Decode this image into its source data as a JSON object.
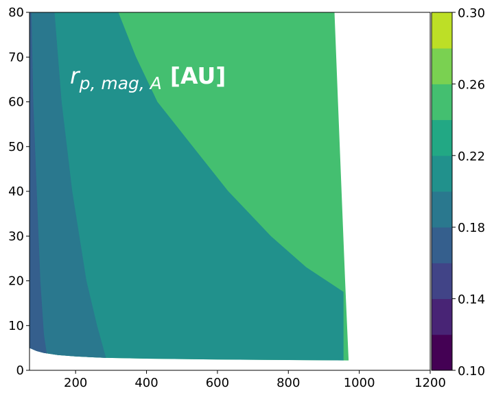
{
  "chart_data": {
    "type": "contourf",
    "title": "",
    "xlabel": "",
    "ylabel": "",
    "xlim": [
      70,
      1200
    ],
    "ylim": [
      0,
      80
    ],
    "x_ticks": [
      200,
      400,
      600,
      800,
      1000,
      1200
    ],
    "x_tick_labels": [
      "200",
      "400",
      "600",
      "800",
      "1000",
      "1200"
    ],
    "y_ticks": [
      0,
      10,
      20,
      30,
      40,
      50,
      60,
      70,
      80
    ],
    "y_tick_labels": [
      "0",
      "10",
      "20",
      "30",
      "40",
      "50",
      "60",
      "70",
      "80"
    ],
    "annotation": {
      "symbol": "r",
      "subscript": "p, mag, A",
      "unit": "[AU]"
    },
    "colorbar": {
      "levels": [
        0.1,
        0.12,
        0.14,
        0.16,
        0.18,
        0.2,
        0.22,
        0.24,
        0.26,
        0.28,
        0.3
      ],
      "colors": [
        "#440154",
        "#482475",
        "#414487",
        "#355f8d",
        "#2a788e",
        "#21918c",
        "#22a884",
        "#44bf70",
        "#7ad151",
        "#bddf26",
        "#fde725"
      ],
      "tick_values": [
        0.1,
        0.14,
        0.18,
        0.22,
        0.26,
        0.3
      ],
      "tick_labels": [
        "0.10",
        "0.14",
        "0.18",
        "0.22",
        "0.26",
        "0.30"
      ]
    },
    "domain": {
      "lower_boundary": [
        [
          70,
          5.0
        ],
        [
          90,
          4.3
        ],
        [
          110,
          3.9
        ],
        [
          150,
          3.4
        ],
        [
          200,
          3.1
        ],
        [
          280,
          2.8
        ],
        [
          400,
          2.6
        ],
        [
          600,
          2.4
        ],
        [
          800,
          2.3
        ],
        [
          970,
          2.2
        ]
      ],
      "right_boundary": [
        [
          970,
          2.2
        ],
        [
          960,
          20
        ],
        [
          940,
          60
        ],
        [
          930,
          80
        ]
      ]
    },
    "regions": [
      {
        "range": [
          0.16,
          0.18
        ],
        "color": "#355f8d",
        "boundary_upper": [
          [
            75,
            80
          ],
          [
            80,
            60
          ],
          [
            90,
            40
          ],
          [
            100,
            20
          ],
          [
            110,
            8
          ],
          [
            118,
            3.8
          ]
        ]
      },
      {
        "range": [
          0.18,
          0.2
        ],
        "color": "#2a788e",
        "boundary_upper": [
          [
            140,
            80
          ],
          [
            160,
            60
          ],
          [
            190,
            40
          ],
          [
            230,
            20
          ],
          [
            260,
            10
          ],
          [
            285,
            2.8
          ]
        ]
      },
      {
        "range": [
          0.2,
          0.22
        ],
        "color": "#21918c",
        "boundary_upper": [
          [
            320,
            80
          ],
          [
            370,
            70
          ],
          [
            430,
            60
          ],
          [
            530,
            50
          ],
          [
            630,
            40
          ],
          [
            750,
            30
          ],
          [
            850,
            23
          ],
          [
            955,
            17.5
          ]
        ]
      },
      {
        "range": [
          0.22,
          0.24
        ],
        "color": "#44bf70"
      }
    ]
  }
}
